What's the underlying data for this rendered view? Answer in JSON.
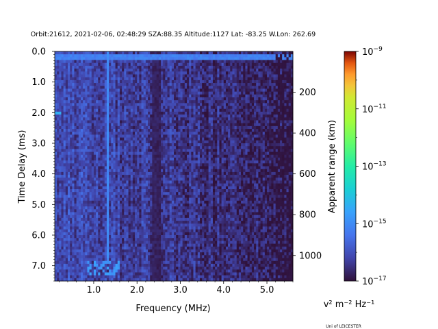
{
  "chart_data": {
    "type": "heatmap",
    "title": "Orbit:21612, 2021-02-06, 02:48:29 SZA:88.35 Altitude:1127 Lat: -83.25 W.Lon: 262.69",
    "xlabel": "Frequency (MHz)",
    "ylabel": "Time Delay (ms)",
    "y2label": "Apparent range (km)",
    "xlim": [
      0.1,
      5.6
    ],
    "ylim": [
      7.5,
      0.0
    ],
    "y2lim": [
      0,
      1125
    ],
    "xticks": [
      1.0,
      2.0,
      3.0,
      4.0,
      5.0
    ],
    "xtick_labels": [
      "1.0",
      "2.0",
      "3.0",
      "4.0",
      "5.0"
    ],
    "yticks": [
      0.0,
      1.0,
      2.0,
      3.0,
      4.0,
      5.0,
      6.0,
      7.0
    ],
    "ytick_labels": [
      "0.0",
      "1.0",
      "2.0",
      "3.0",
      "4.0",
      "5.0",
      "6.0",
      "7.0"
    ],
    "y2ticks": [
      200,
      400,
      600,
      800,
      1000
    ],
    "y2tick_labels": [
      "200",
      "400",
      "600",
      "800",
      "1000"
    ],
    "colorbar": {
      "label": "v² m⁻² Hz⁻¹",
      "scale": "log",
      "range": [
        1e-17,
        1e-09
      ],
      "ticks_exp": [
        -17,
        -15,
        -13,
        -11,
        -9
      ],
      "tick_labels": [
        "10",
        "10",
        "10",
        "10",
        "10"
      ],
      "tick_exponents": [
        "−17",
        "−15",
        "−13",
        "−11",
        "−9"
      ]
    },
    "features": {
      "freq_bins": 110,
      "time_bins": 80,
      "background_log10_low_freq": -16.1,
      "background_log10_high_freq": -16.8,
      "top_echo_delay_ms": 0.2,
      "top_echo_log10": -15.0,
      "vertical_line_freq_mhz": 1.32,
      "vertical_line_log10": -15.2,
      "quiet_band_freq_mhz": [
        2.35,
        2.55
      ],
      "hot_spot_delay_ms": 2.0,
      "hot_spot_freq_mhz": [
        0.1,
        0.25
      ],
      "low_echo_delay_ms": [
        6.8,
        7.3
      ],
      "low_echo_freq_mhz": [
        0.85,
        1.6
      ]
    }
  },
  "footer": {
    "credit": "Uni of LEICESTER"
  }
}
